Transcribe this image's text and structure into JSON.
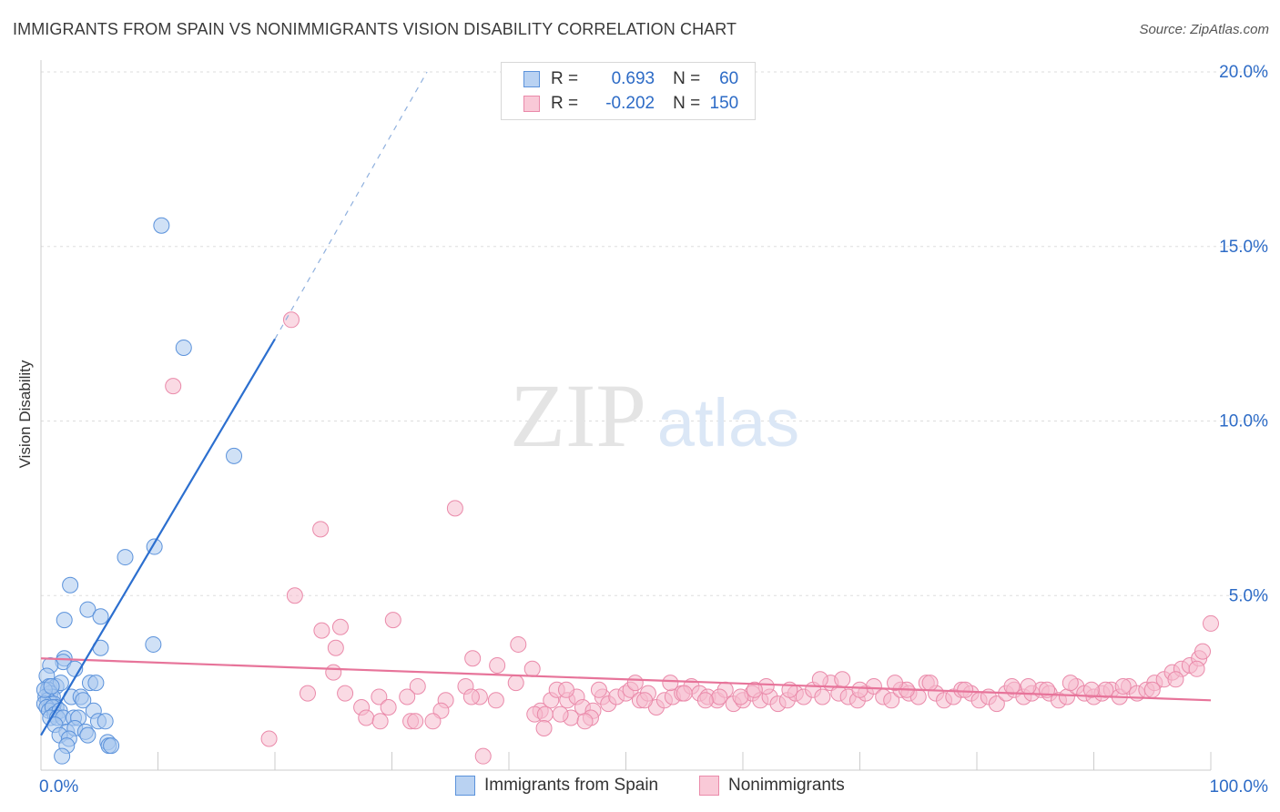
{
  "title": "IMMIGRANTS FROM SPAIN VS NONIMMIGRANTS VISION DISABILITY CORRELATION CHART",
  "source": "Source: ZipAtlas.com",
  "watermark": {
    "zip": "ZIP",
    "atlas": "atlas"
  },
  "legend": {
    "rows": [
      {
        "r_label": "R =",
        "r_value": "0.693",
        "n_label": "N =",
        "n_value": "60"
      },
      {
        "r_label": "R =",
        "r_value": "-0.202",
        "n_label": "N =",
        "n_value": "150"
      }
    ]
  },
  "colors": {
    "blue_fill": "#a9c8ef",
    "blue_stroke": "#5b92db",
    "blue_line": "#2c6fcf",
    "pink_fill": "#f6bccd",
    "pink_stroke": "#ea8aaa",
    "pink_line": "#e7749a",
    "axis_text": "#2d6bc6",
    "grid": "#dddddd"
  },
  "chart_data": {
    "type": "scatter",
    "title": "IMMIGRANTS FROM SPAIN VS NONIMMIGRANTS VISION DISABILITY CORRELATION CHART",
    "xlabel": "",
    "ylabel": "Vision Disability",
    "xlim": [
      0,
      100
    ],
    "ylim": [
      0,
      20
    ],
    "x_tick_labels": [
      "0.0%",
      "100.0%"
    ],
    "y_ticks": [
      5,
      10,
      15,
      20
    ],
    "y_tick_labels": [
      "5.0%",
      "10.0%",
      "15.0%",
      "20.0%"
    ],
    "series": [
      {
        "name": "Immigrants from Spain",
        "r": 0.693,
        "n": 60,
        "trend": {
          "x0": 0.0,
          "y0": 1.0,
          "x1": 20.0,
          "y1": 12.35,
          "dashed_to_x": 33.0,
          "dashed_to_y": 20.0
        },
        "points": [
          [
            10.3,
            15.6
          ],
          [
            12.2,
            12.1
          ],
          [
            16.5,
            9.0
          ],
          [
            9.7,
            6.4
          ],
          [
            7.2,
            6.1
          ],
          [
            2.5,
            5.3
          ],
          [
            4.0,
            4.6
          ],
          [
            2.0,
            4.3
          ],
          [
            5.1,
            4.4
          ],
          [
            9.6,
            3.6
          ],
          [
            5.1,
            3.5
          ],
          [
            2.0,
            3.2
          ],
          [
            1.9,
            3.1
          ],
          [
            0.8,
            3.0
          ],
          [
            2.9,
            2.9
          ],
          [
            0.5,
            2.7
          ],
          [
            0.7,
            2.4
          ],
          [
            1.3,
            2.4
          ],
          [
            1.7,
            2.5
          ],
          [
            4.2,
            2.5
          ],
          [
            4.7,
            2.5
          ],
          [
            0.6,
            2.3
          ],
          [
            0.8,
            2.2
          ],
          [
            1.0,
            2.1
          ],
          [
            0.4,
            2.1
          ],
          [
            0.6,
            2.0
          ],
          [
            0.9,
            1.9
          ],
          [
            1.1,
            1.9
          ],
          [
            1.3,
            1.8
          ],
          [
            2.6,
            2.1
          ],
          [
            3.4,
            2.1
          ],
          [
            3.6,
            2.0
          ],
          [
            0.3,
            1.9
          ],
          [
            0.5,
            1.8
          ],
          [
            0.7,
            1.7
          ],
          [
            1.0,
            1.8
          ],
          [
            1.2,
            1.6
          ],
          [
            1.6,
            1.7
          ],
          [
            0.8,
            1.5
          ],
          [
            1.4,
            1.5
          ],
          [
            1.9,
            1.5
          ],
          [
            2.8,
            1.5
          ],
          [
            3.2,
            1.5
          ],
          [
            4.5,
            1.7
          ],
          [
            1.2,
            1.3
          ],
          [
            2.2,
            1.1
          ],
          [
            2.9,
            1.2
          ],
          [
            3.8,
            1.1
          ],
          [
            4.9,
            1.4
          ],
          [
            5.5,
            1.4
          ],
          [
            1.6,
            1.0
          ],
          [
            2.4,
            0.9
          ],
          [
            4.0,
            1.0
          ],
          [
            5.7,
            0.8
          ],
          [
            2.2,
            0.7
          ],
          [
            5.8,
            0.7
          ],
          [
            6.0,
            0.7
          ],
          [
            1.8,
            0.4
          ],
          [
            0.3,
            2.3
          ],
          [
            0.9,
            2.4
          ]
        ]
      },
      {
        "name": "Nonimmigrants",
        "r": -0.202,
        "n": 150,
        "trend": {
          "x0": 0.0,
          "y0": 3.2,
          "x1": 100.0,
          "y1": 2.0
        },
        "points": [
          [
            21.4,
            12.9
          ],
          [
            11.3,
            11.0
          ],
          [
            35.4,
            7.5
          ],
          [
            23.9,
            6.9
          ],
          [
            21.7,
            5.0
          ],
          [
            30.1,
            4.3
          ],
          [
            25.6,
            4.1
          ],
          [
            24.0,
            4.0
          ],
          [
            25.2,
            3.5
          ],
          [
            40.8,
            3.6
          ],
          [
            36.9,
            3.2
          ],
          [
            42.0,
            2.9
          ],
          [
            39.0,
            3.0
          ],
          [
            25.0,
            2.8
          ],
          [
            40.6,
            2.5
          ],
          [
            36.3,
            2.4
          ],
          [
            32.2,
            2.4
          ],
          [
            26.0,
            2.2
          ],
          [
            31.3,
            2.1
          ],
          [
            34.6,
            2.0
          ],
          [
            37.5,
            2.1
          ],
          [
            38.9,
            2.0
          ],
          [
            36.8,
            2.1
          ],
          [
            27.4,
            1.8
          ],
          [
            28.9,
            2.1
          ],
          [
            29.7,
            1.8
          ],
          [
            34.2,
            1.7
          ],
          [
            42.7,
            1.7
          ],
          [
            43.6,
            2.0
          ],
          [
            45.0,
            2.0
          ],
          [
            45.8,
            2.1
          ],
          [
            44.1,
            2.3
          ],
          [
            44.9,
            2.3
          ],
          [
            48.0,
            2.1
          ],
          [
            47.7,
            2.3
          ],
          [
            46.3,
            1.8
          ],
          [
            47.2,
            1.7
          ],
          [
            45.3,
            1.5
          ],
          [
            47.0,
            1.5
          ],
          [
            42.2,
            1.6
          ],
          [
            43.1,
            1.6
          ],
          [
            48.5,
            1.9
          ],
          [
            49.2,
            2.1
          ],
          [
            50.0,
            2.2
          ],
          [
            50.4,
            2.3
          ],
          [
            51.2,
            2.0
          ],
          [
            51.9,
            2.2
          ],
          [
            52.6,
            1.8
          ],
          [
            53.3,
            2.0
          ],
          [
            54.0,
            2.1
          ],
          [
            54.8,
            2.2
          ],
          [
            55.6,
            2.4
          ],
          [
            56.3,
            2.2
          ],
          [
            57.0,
            2.1
          ],
          [
            57.8,
            2.0
          ],
          [
            58.5,
            2.3
          ],
          [
            59.2,
            1.9
          ],
          [
            60.0,
            2.0
          ],
          [
            60.8,
            2.2
          ],
          [
            61.5,
            2.0
          ],
          [
            62.3,
            2.1
          ],
          [
            63.0,
            1.9
          ],
          [
            63.8,
            2.0
          ],
          [
            64.5,
            2.2
          ],
          [
            65.2,
            2.1
          ],
          [
            66.0,
            2.3
          ],
          [
            66.8,
            2.1
          ],
          [
            67.5,
            2.5
          ],
          [
            68.2,
            2.2
          ],
          [
            69.0,
            2.1
          ],
          [
            69.8,
            2.0
          ],
          [
            70.5,
            2.2
          ],
          [
            71.2,
            2.4
          ],
          [
            72.0,
            2.1
          ],
          [
            72.7,
            2.0
          ],
          [
            73.5,
            2.3
          ],
          [
            74.2,
            2.2
          ],
          [
            75.0,
            2.1
          ],
          [
            75.7,
            2.5
          ],
          [
            76.5,
            2.2
          ],
          [
            77.2,
            2.0
          ],
          [
            78.0,
            2.1
          ],
          [
            78.7,
            2.3
          ],
          [
            79.5,
            2.2
          ],
          [
            80.2,
            2.0
          ],
          [
            81.0,
            2.1
          ],
          [
            81.7,
            1.9
          ],
          [
            82.5,
            2.2
          ],
          [
            83.2,
            2.3
          ],
          [
            84.0,
            2.1
          ],
          [
            84.7,
            2.2
          ],
          [
            85.5,
            2.3
          ],
          [
            86.2,
            2.2
          ],
          [
            87.0,
            2.0
          ],
          [
            87.7,
            2.1
          ],
          [
            88.5,
            2.4
          ],
          [
            89.2,
            2.2
          ],
          [
            90.0,
            2.1
          ],
          [
            90.7,
            2.2
          ],
          [
            91.5,
            2.3
          ],
          [
            92.2,
            2.1
          ],
          [
            93.0,
            2.4
          ],
          [
            93.7,
            2.2
          ],
          [
            94.5,
            2.3
          ],
          [
            95.2,
            2.5
          ],
          [
            96.0,
            2.6
          ],
          [
            96.7,
            2.8
          ],
          [
            97.5,
            2.9
          ],
          [
            98.2,
            3.0
          ],
          [
            99.0,
            3.2
          ],
          [
            99.3,
            3.4
          ],
          [
            100.0,
            4.2
          ],
          [
            62.0,
            2.4
          ],
          [
            68.5,
            2.6
          ],
          [
            76.0,
            2.5
          ],
          [
            83.0,
            2.4
          ],
          [
            88.0,
            2.5
          ],
          [
            92.5,
            2.4
          ],
          [
            55.0,
            2.2
          ],
          [
            58.0,
            2.1
          ],
          [
            61.0,
            2.3
          ],
          [
            64.0,
            2.3
          ],
          [
            70.0,
            2.3
          ],
          [
            74.0,
            2.3
          ],
          [
            79.0,
            2.3
          ],
          [
            86.0,
            2.3
          ],
          [
            91.0,
            2.3
          ],
          [
            95.0,
            2.3
          ],
          [
            97.0,
            2.6
          ],
          [
            98.8,
            2.9
          ],
          [
            89.8,
            2.3
          ],
          [
            84.4,
            2.4
          ],
          [
            50.8,
            2.5
          ],
          [
            53.8,
            2.5
          ],
          [
            66.6,
            2.6
          ],
          [
            73.0,
            2.5
          ],
          [
            22.8,
            2.2
          ],
          [
            27.8,
            1.5
          ],
          [
            31.6,
            1.4
          ],
          [
            33.5,
            1.4
          ],
          [
            32.0,
            1.4
          ],
          [
            29.0,
            1.4
          ],
          [
            44.4,
            1.6
          ],
          [
            46.5,
            1.4
          ],
          [
            43.0,
            1.2
          ],
          [
            19.5,
            0.9
          ],
          [
            37.8,
            0.4
          ],
          [
            51.6,
            2.0
          ],
          [
            56.8,
            2.0
          ],
          [
            59.8,
            2.1
          ]
        ]
      }
    ]
  },
  "bottom_legend": {
    "series1": "Immigrants from Spain",
    "series2": "Nonimmigrants"
  }
}
